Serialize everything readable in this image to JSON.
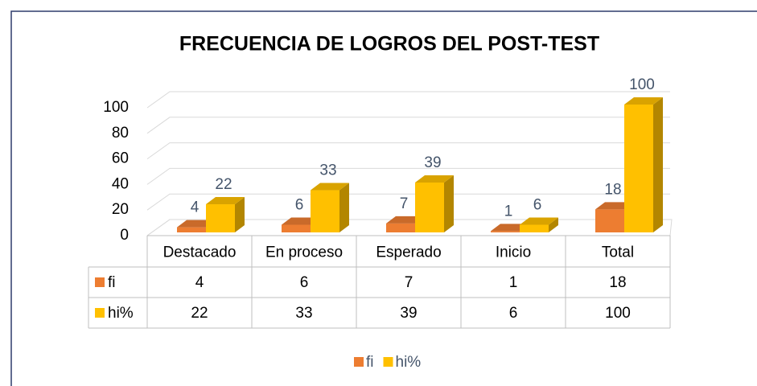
{
  "chart_data": {
    "type": "bar",
    "title": "FRECUENCIA DE LOGROS DEL POST-TEST",
    "categories": [
      "Destacado",
      "En proceso",
      "Esperado",
      "Inicio",
      "Total"
    ],
    "series": [
      {
        "name": "fi",
        "color": "#ed7d31",
        "values": [
          4,
          6,
          7,
          1,
          18
        ]
      },
      {
        "name": "hi%",
        "color": "#ffc000",
        "values": [
          22,
          33,
          39,
          6,
          100
        ]
      }
    ],
    "ylim": [
      0,
      100
    ],
    "yticks": [
      0,
      20,
      40,
      60,
      80,
      100
    ],
    "grid": true,
    "legend": "bottom"
  }
}
